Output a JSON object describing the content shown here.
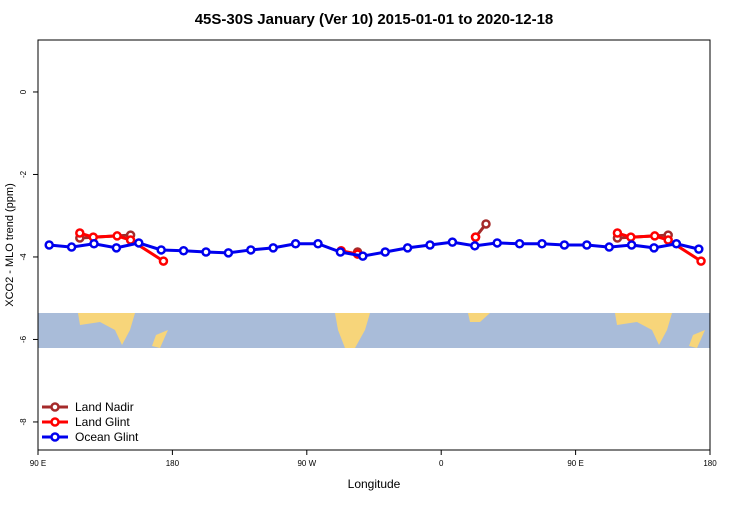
{
  "chart_data": {
    "type": "line",
    "title": "45S-30S January (Ver 10)   2015-01-01 to 2020-12-18",
    "xlabel": "Longitude",
    "ylabel": "XCO2 - MLO trend (ppm)",
    "xlim": [
      90,
      540
    ],
    "ylim": [
      -8.68,
      1.26
    ],
    "xticks": [
      {
        "value": 90,
        "label": "90 E"
      },
      180,
      {
        "value": 270,
        "label": "90 W"
      },
      {
        "value": 360,
        "label": "0"
      },
      {
        "value": 450,
        "label": "90 E"
      },
      {
        "value": 540,
        "label": "180"
      }
    ],
    "yticks": [
      0,
      -2,
      -4,
      -6,
      -8
    ],
    "legend": "bottom-left",
    "series": [
      {
        "name": "Land Nadir",
        "color": "#a52a2a",
        "x": [
          118,
          152,
          null,
          304,
          null,
          383,
          390,
          null,
          478,
          512
        ],
        "values": [
          -3.54,
          -3.47,
          null,
          -3.88,
          null,
          -3.52,
          -3.2,
          null,
          -3.54,
          -3.47
        ]
      },
      {
        "name": "Land Glint",
        "color": "#ff0000",
        "x": [
          118,
          127,
          143,
          152,
          174,
          null,
          293,
          304,
          null,
          383,
          null,
          478,
          487,
          503,
          512,
          534
        ],
        "values": [
          -3.42,
          -3.52,
          -3.49,
          -3.59,
          -4.1,
          null,
          -3.85,
          -3.93,
          null,
          -3.52,
          null,
          -3.42,
          -3.52,
          -3.49,
          -3.59,
          -4.1
        ]
      },
      {
        "name": "Ocean Glint",
        "color": "#0000ee",
        "x": [
          97.5,
          112.5,
          127.5,
          142.5,
          157.5,
          172.5,
          187.5,
          202.5,
          217.5,
          232.5,
          247.5,
          262.5,
          277.5,
          292.5,
          307.5,
          322.5,
          337.5,
          352.5,
          367.5,
          382.5,
          397.5,
          412.5,
          427.5,
          442.5,
          457.5,
          472.5,
          487.5,
          502.5,
          517.5,
          532.5
        ],
        "values": [
          -3.71,
          -3.76,
          -3.68,
          -3.78,
          -3.66,
          -3.83,
          -3.85,
          -3.88,
          -3.9,
          -3.83,
          -3.78,
          -3.68,
          -3.68,
          -3.88,
          -3.98,
          -3.88,
          -3.78,
          -3.71,
          -3.64,
          -3.73,
          -3.66,
          -3.68,
          -3.68,
          -3.71,
          -3.71,
          -3.76,
          -3.71,
          -3.78,
          -3.68,
          -3.81
        ]
      }
    ]
  }
}
